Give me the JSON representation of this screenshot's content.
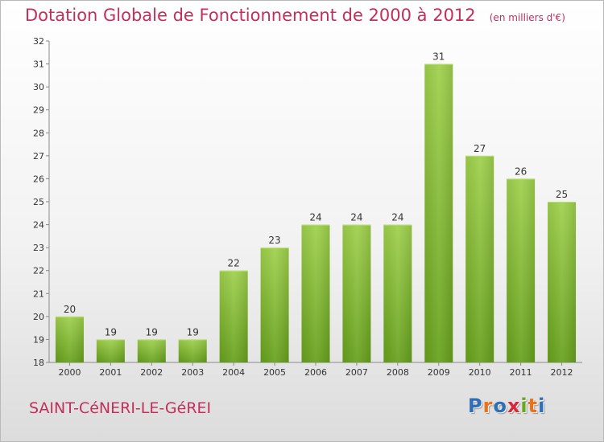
{
  "header": {
    "title": "Dotation Globale de Fonctionnement de 2000 à 2012",
    "unit": "(en milliers d'€)"
  },
  "footer": {
    "commune": "SAINT-CéNERI-LE-GéREI",
    "logo_text": "Proxiti",
    "logo_colors": [
      "#2e6eb8",
      "#e8731c",
      "#2e6eb8",
      "#d9263a",
      "#67a81e",
      "#e8731c",
      "#2e6eb8"
    ]
  },
  "chart_data": {
    "type": "bar",
    "title": "Dotation Globale de Fonctionnement de 2000 à 2012",
    "subtitle": "(en milliers d'€)",
    "categories": [
      "2000",
      "2001",
      "2002",
      "2003",
      "2004",
      "2005",
      "2006",
      "2007",
      "2008",
      "2009",
      "2010",
      "2011",
      "2012"
    ],
    "values": [
      20,
      19,
      19,
      19,
      22,
      23,
      24,
      24,
      24,
      31,
      27,
      26,
      25
    ],
    "ylim": [
      18,
      32
    ],
    "yticks": [
      18,
      19,
      20,
      21,
      22,
      23,
      24,
      25,
      26,
      27,
      28,
      29,
      30,
      31,
      32
    ],
    "grid": false,
    "bar_color": "#8cc43e",
    "xlabel": "",
    "ylabel": ""
  }
}
